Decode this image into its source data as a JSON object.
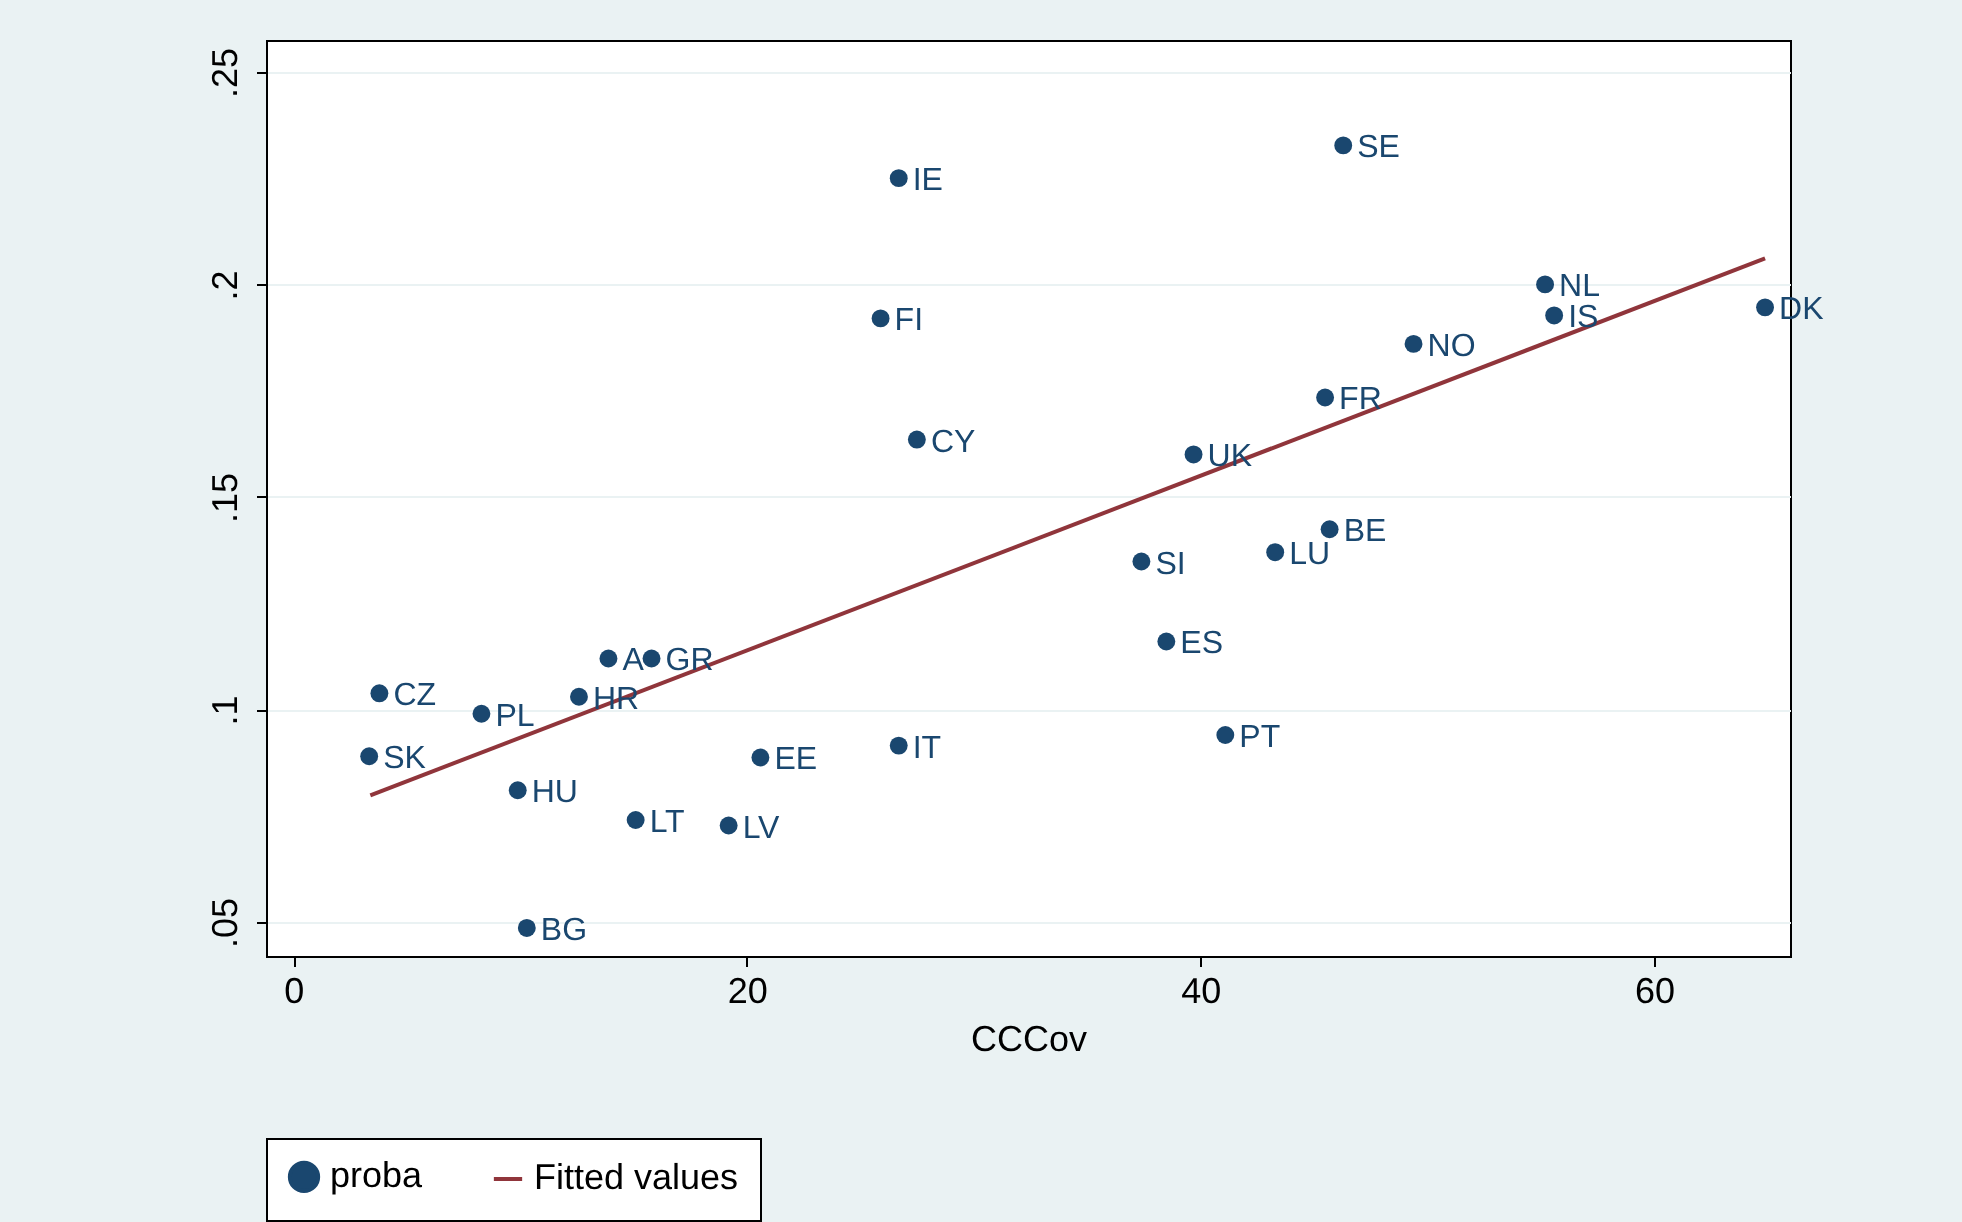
{
  "chart_data": {
    "type": "scatter",
    "xlabel": "CCCov",
    "xlim": [
      -1.2,
      66
    ],
    "xticks": [
      0,
      20,
      40,
      60
    ],
    "ylim": [
      0.042,
      0.2575
    ],
    "yticks": [
      {
        "value": 0.05,
        "label": ".05"
      },
      {
        "value": 0.1,
        "label": ".1"
      },
      {
        "value": 0.15,
        "label": ".15"
      },
      {
        "value": 0.2,
        "label": ".2"
      },
      {
        "value": 0.25,
        "label": ".25"
      }
    ],
    "grid": "y",
    "legend": "bottom",
    "series": [
      {
        "name": "proba",
        "marker": "circle",
        "color": "#1a476f",
        "x": [
          3.8,
          8.3,
          3.35,
          9.9,
          10.3,
          12.6,
          13.9,
          15.8,
          15.1,
          19.2,
          20.6,
          26.7,
          25.9,
          26.7,
          27.5,
          38.5,
          37.4,
          39.7,
          41.1,
          43.3,
          45.7,
          45.5,
          46.3,
          49.4,
          55.2,
          55.6,
          64.9
        ],
        "values": [
          0.1038,
          0.099,
          0.089,
          0.081,
          0.0486,
          0.103,
          0.112,
          0.112,
          0.074,
          0.0727,
          0.0887,
          0.0915,
          0.192,
          0.225,
          0.1635,
          0.116,
          0.1348,
          0.16,
          0.094,
          0.137,
          0.1424,
          0.1734,
          0.2327,
          0.186,
          0.2,
          0.1927,
          0.1946
        ],
        "value_labels": [
          "CZ",
          "PL",
          "SK",
          "HU",
          "BG",
          "HR",
          "A",
          "GR",
          "LT",
          "LV",
          "EE",
          "IT",
          "FI",
          "IE",
          "CY",
          "ES",
          "SI",
          "UK",
          "PT",
          "LU",
          "BE",
          "FR",
          "SE",
          "NO",
          "NL",
          "IS",
          "DK"
        ]
      },
      {
        "name": "Fitted values",
        "type": "line",
        "color": "#90353b",
        "x": [
          3.4,
          64.9
        ],
        "values": [
          0.0798,
          0.2061
        ]
      }
    ]
  }
}
